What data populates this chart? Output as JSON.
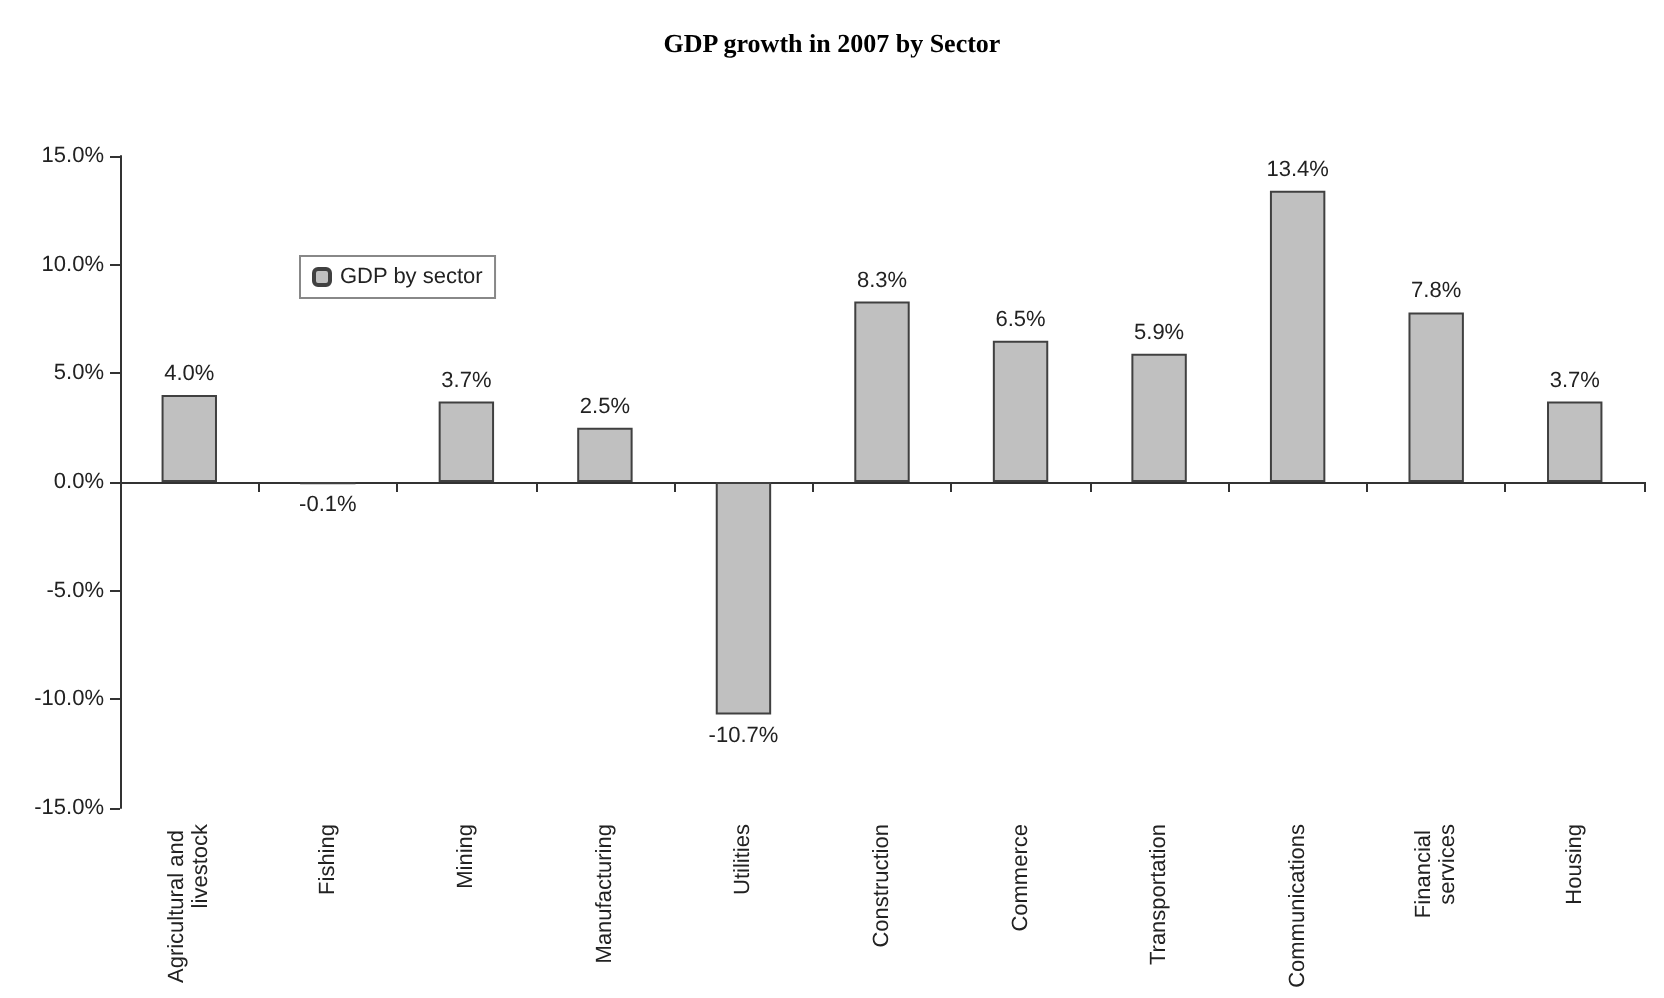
{
  "chart_data": {
    "type": "bar",
    "title": "GDP growth in 2007 by Sector",
    "categories": [
      "Agricultural and livestock",
      "Fishing",
      "Mining",
      "Manufacturing",
      "Utilities",
      "Construction",
      "Commerce",
      "Transportation",
      "Communications",
      "Financial services",
      "Housing"
    ],
    "series": [
      {
        "name": "GDP by sector",
        "color": "#c0c0c0",
        "values": [
          4.0,
          -0.1,
          3.7,
          2.5,
          -10.7,
          8.3,
          6.5,
          5.9,
          13.4,
          7.8,
          3.7
        ],
        "value_labels": [
          "4.0%",
          "-0.1%",
          "3.7%",
          "2.5%",
          "-10.7%",
          "8.3%",
          "6.5%",
          "5.9%",
          "13.4%",
          "7.8%",
          "3.7%"
        ]
      }
    ],
    "ylim": [
      -15,
      15
    ],
    "yticks": [
      {
        "value": -15,
        "label": "-15.0%"
      },
      {
        "value": -10,
        "label": "-10.0%"
      },
      {
        "value": -5,
        "label": "-5.0%"
      },
      {
        "value": 0,
        "label": "0.0%"
      },
      {
        "value": 5,
        "label": "5.0%"
      },
      {
        "value": 10,
        "label": "10.0%"
      },
      {
        "value": 15,
        "label": "15.0%"
      }
    ],
    "legend": "top left"
  }
}
